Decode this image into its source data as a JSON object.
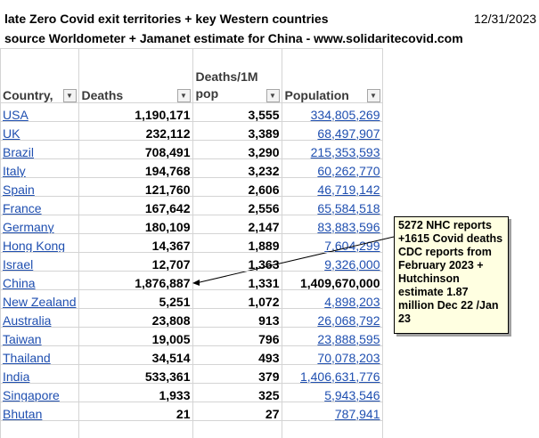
{
  "title": "late Zero Covid exit territories + key Western countries",
  "date": "12/31/2023",
  "source": "source Worldometer + Jamanet estimate for China - www.solidaritecovid.com",
  "columns": [
    "Country,",
    "Deaths",
    "Deaths/1M pop",
    "Population"
  ],
  "rows": [
    {
      "country": "USA",
      "deaths": "1,190,171",
      "per_m": "3,555",
      "population": "334,805,269"
    },
    {
      "country": "UK",
      "deaths": "232,112",
      "per_m": "3,389",
      "population": "68,497,907"
    },
    {
      "country": "Brazil",
      "deaths": "708,491",
      "per_m": "3,290",
      "population": "215,353,593"
    },
    {
      "country": "Italy",
      "deaths": "194,768",
      "per_m": "3,232",
      "population": "60,262,770"
    },
    {
      "country": "Spain",
      "deaths": "121,760",
      "per_m": "2,606",
      "population": "46,719,142"
    },
    {
      "country": "France",
      "deaths": "167,642",
      "per_m": "2,556",
      "population": "65,584,518"
    },
    {
      "country": "Germany",
      "deaths": "180,109",
      "per_m": "2,147",
      "population": "83,883,596"
    },
    {
      "country": "Hong Kong",
      "deaths": "14,367",
      "per_m": "1,889",
      "population": "7,604,299"
    },
    {
      "country": "Israel",
      "deaths": "12,707",
      "per_m": "1,363",
      "population": "9,326,000"
    },
    {
      "country": "China",
      "deaths": "1,876,887",
      "per_m": "1,331",
      "population": "1,409,670,000"
    },
    {
      "country": "New Zealand",
      "deaths": "5,251",
      "per_m": "1,072",
      "population": "4,898,203"
    },
    {
      "country": "Australia",
      "deaths": "23,808",
      "per_m": "913",
      "population": "26,068,792"
    },
    {
      "country": "Taiwan",
      "deaths": "19,005",
      "per_m": "796",
      "population": "23,888,595"
    },
    {
      "country": "Thailand",
      "deaths": "34,514",
      "per_m": "493",
      "population": "70,078,203"
    },
    {
      "country": "India",
      "deaths": "533,361",
      "per_m": "379",
      "population": "1,406,631,776"
    },
    {
      "country": "Singapore",
      "deaths": "1,933",
      "per_m": "325",
      "population": "5,943,546"
    },
    {
      "country": "Bhutan",
      "deaths": "21",
      "per_m": "27",
      "population": "787,941"
    }
  ],
  "comment": "5272 NHC reports +1615 Covid deaths CDC reports from February 2023 + Hutchinson estimate 1.87 million Dec 22 /Jan 23"
}
